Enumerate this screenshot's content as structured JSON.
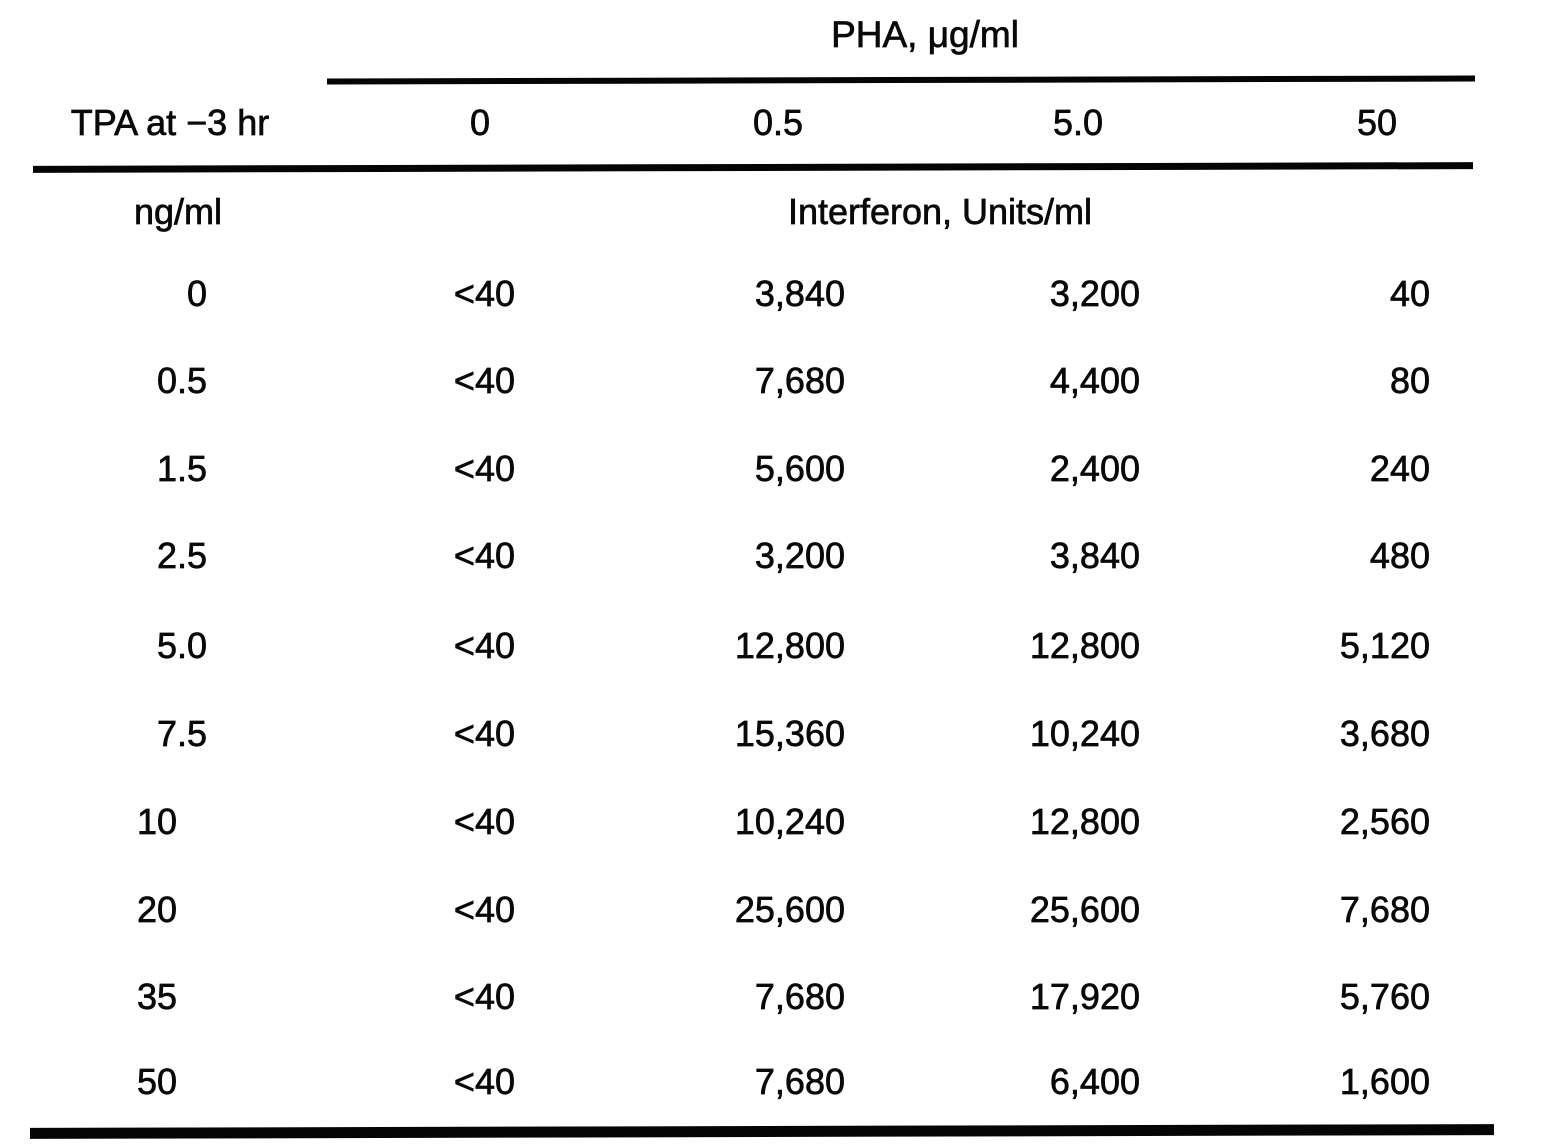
{
  "table": {
    "title": "PHA, μg/ml",
    "row_axis_label": "TPA at −3 hr",
    "row_axis_unit": "ng/ml",
    "values_unit_label": "Interferon, Units/ml",
    "col_headers": [
      "0",
      "0.5",
      "5.0",
      "50"
    ],
    "rows": [
      {
        "tpa": "0",
        "values": [
          "<40",
          "3,840",
          "3,200",
          "40"
        ]
      },
      {
        "tpa": "0.5",
        "values": [
          "<40",
          "7,680",
          "4,400",
          "80"
        ]
      },
      {
        "tpa": "1.5",
        "values": [
          "<40",
          "5,600",
          "2,400",
          "240"
        ]
      },
      {
        "tpa": "2.5",
        "values": [
          "<40",
          "3,200",
          "3,840",
          "480"
        ]
      },
      {
        "tpa": "5.0",
        "values": [
          "<40",
          "12,800",
          "12,800",
          "5,120"
        ]
      },
      {
        "tpa": "7.5",
        "values": [
          "<40",
          "15,360",
          "10,240",
          "3,680"
        ]
      },
      {
        "tpa": "10",
        "values": [
          "<40",
          "10,240",
          "12,800",
          "2,560"
        ]
      },
      {
        "tpa": "20",
        "values": [
          "<40",
          "25,600",
          "25,600",
          "7,680"
        ]
      },
      {
        "tpa": "35",
        "values": [
          "<40",
          "7,680",
          "17,920",
          "5,760"
        ]
      },
      {
        "tpa": "50",
        "values": [
          "<40",
          "7,680",
          "6,400",
          "1,600"
        ]
      }
    ]
  }
}
